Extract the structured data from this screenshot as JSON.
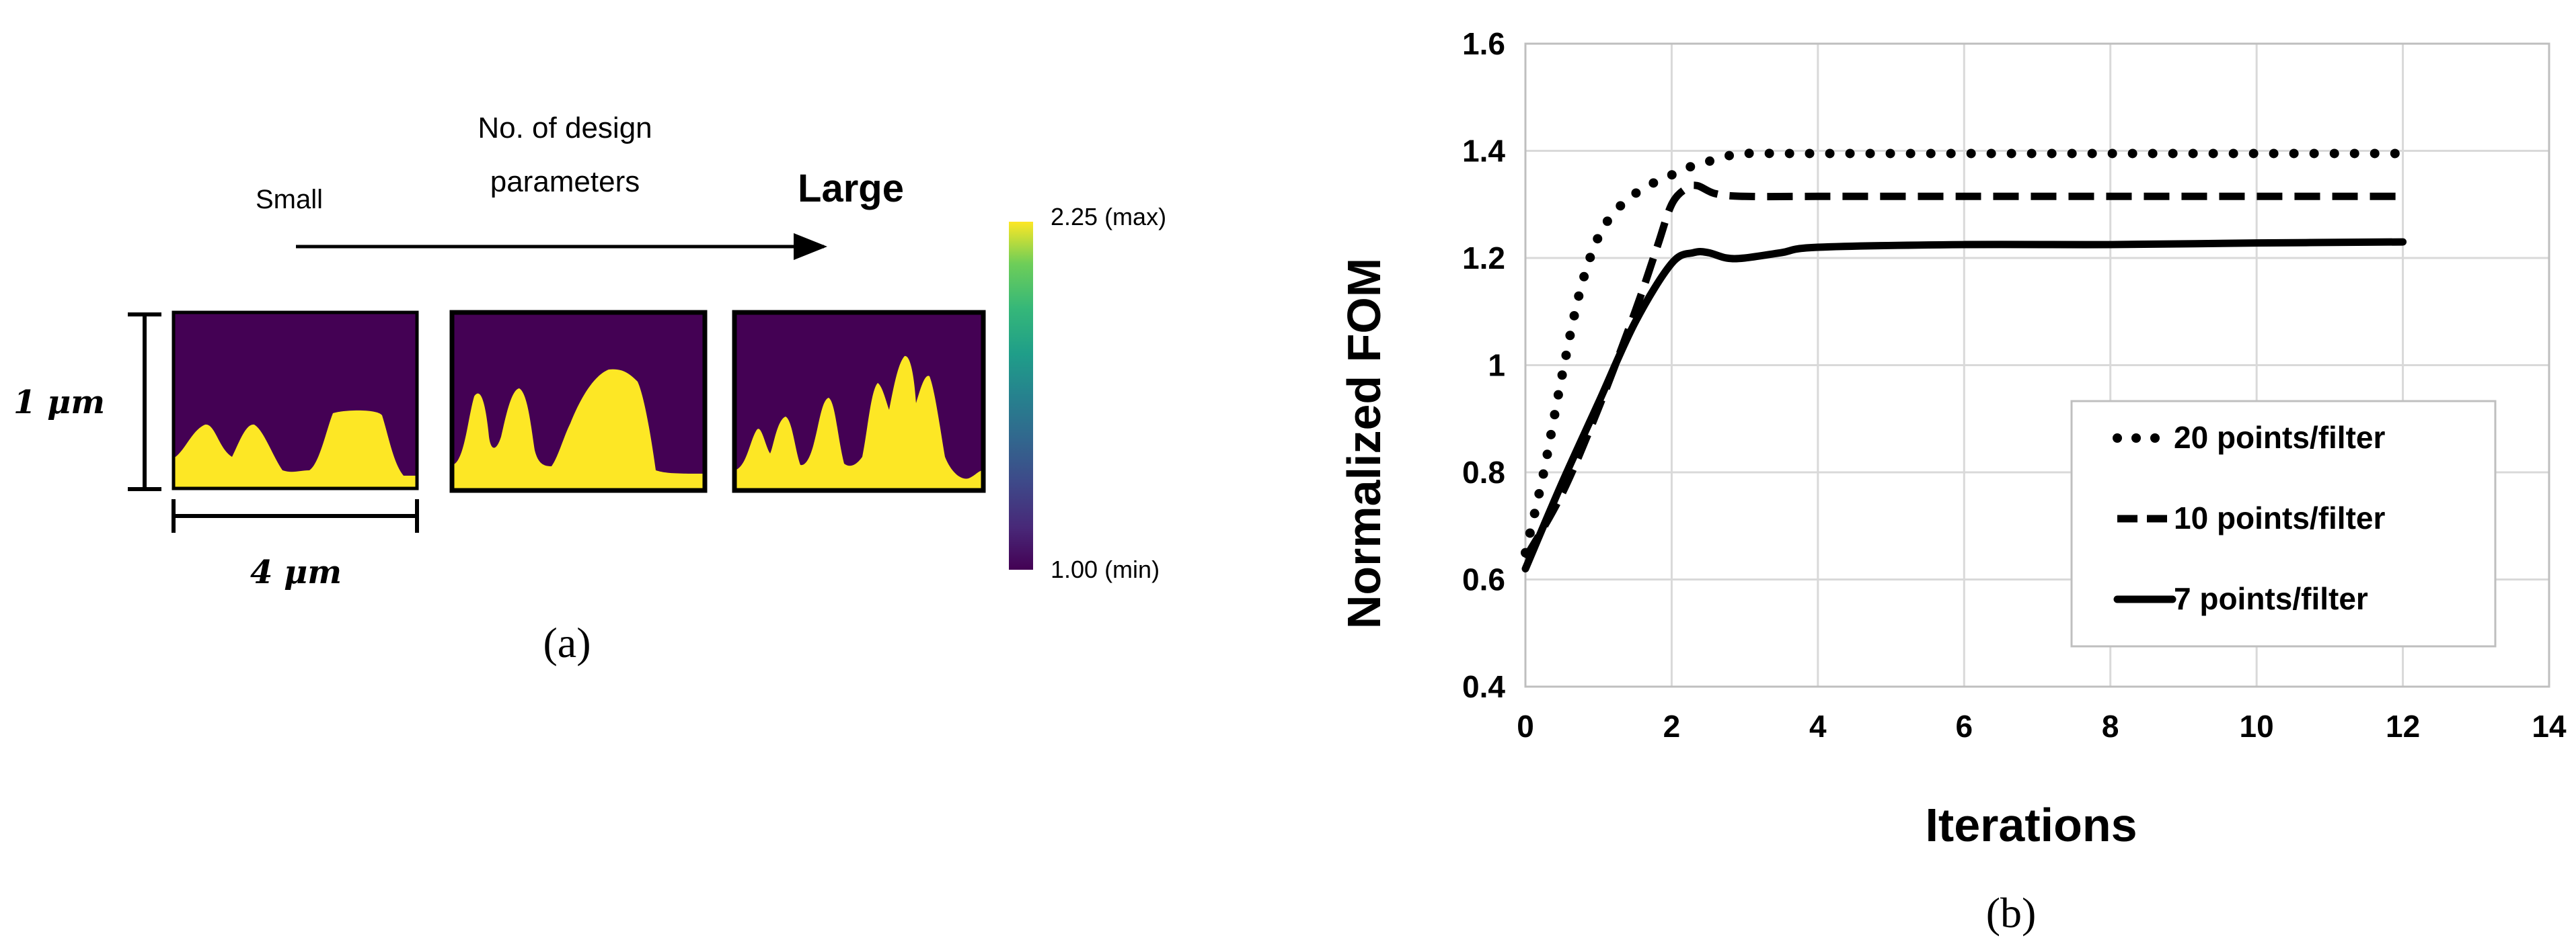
{
  "panel_a": {
    "small_label": "Small",
    "title_line1": "No. of design",
    "title_line2": "parameters",
    "large_label": "Large",
    "height_label": "1 μm",
    "width_label": "4 μm",
    "colorbar_max": "2.25 (max)",
    "colorbar_min": "1.00 (min)",
    "caption": "(a)",
    "colors": {
      "background": "#440154",
      "material": "#fde725"
    }
  },
  "chart_data": {
    "type": "line",
    "title": "",
    "xlabel": "Iterations",
    "ylabel": "Normalized FOM",
    "xlim": [
      0,
      14
    ],
    "ylim": [
      0.4,
      1.6
    ],
    "xticks": [
      "0",
      "2",
      "4",
      "6",
      "8",
      "10",
      "12",
      "14"
    ],
    "yticks": [
      "0.4",
      "0.6",
      "0.8",
      "1",
      "1.2",
      "1.4",
      "1.6"
    ],
    "grid": true,
    "legend_position": "bottom-right",
    "series": [
      {
        "name": "20 points/filter",
        "style": "dotted",
        "x": [
          0,
          0.25,
          0.5,
          0.75,
          1.0,
          1.25,
          1.5,
          1.75,
          2.0,
          2.25,
          2.5,
          2.75,
          3,
          3.5,
          4,
          6,
          8,
          10,
          12
        ],
        "y": [
          0.65,
          0.8,
          0.98,
          1.14,
          1.24,
          1.29,
          1.32,
          1.34,
          1.355,
          1.37,
          1.38,
          1.39,
          1.395,
          1.395,
          1.395,
          1.395,
          1.395,
          1.395,
          1.395
        ]
      },
      {
        "name": "10 points/filter",
        "style": "dashed",
        "x": [
          0,
          0.5,
          1.0,
          1.5,
          1.8,
          2.0,
          2.2,
          2.35,
          2.6,
          3.0,
          4,
          6,
          8,
          10,
          12
        ],
        "y": [
          0.64,
          0.76,
          0.92,
          1.1,
          1.22,
          1.3,
          1.33,
          1.335,
          1.32,
          1.315,
          1.315,
          1.315,
          1.315,
          1.315,
          1.315
        ]
      },
      {
        "name": "7 points/filter",
        "style": "solid",
        "x": [
          0,
          0.5,
          1.0,
          1.5,
          2.0,
          2.3,
          2.5,
          2.75,
          3.0,
          3.5,
          4.0,
          6,
          8,
          10,
          12
        ],
        "y": [
          0.62,
          0.78,
          0.93,
          1.08,
          1.19,
          1.21,
          1.21,
          1.2,
          1.2,
          1.21,
          1.22,
          1.225,
          1.225,
          1.228,
          1.23
        ]
      }
    ],
    "caption": "(b)"
  }
}
